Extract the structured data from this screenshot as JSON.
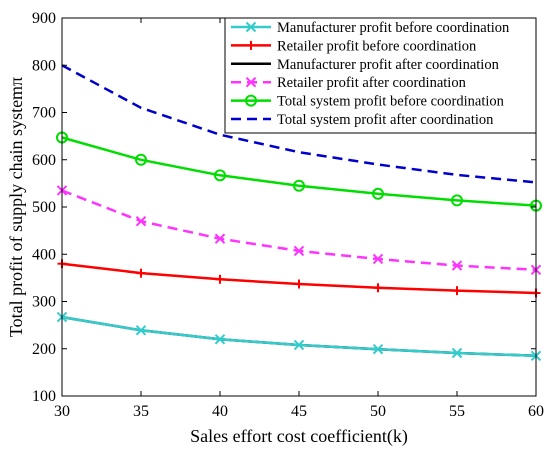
{
  "chart_data": {
    "type": "line",
    "title": "",
    "xlabel": "Sales effort cost coefficient(k)",
    "ylabel": "Total profit of supply chain systemπ",
    "xlim": [
      30,
      60
    ],
    "ylim": [
      100,
      900
    ],
    "xticks": [
      30,
      35,
      40,
      45,
      50,
      55,
      60
    ],
    "yticks": [
      100,
      200,
      300,
      400,
      500,
      600,
      700,
      800,
      900
    ],
    "grid": false,
    "legend_position": "top-right",
    "x": [
      30,
      35,
      40,
      45,
      50,
      55,
      60
    ],
    "series": [
      {
        "name": "Manufacturer profit before coordination",
        "values": [
          267,
          239,
          220,
          208,
          199,
          191,
          185
        ],
        "color": "#33cccc",
        "line_style": "solid",
        "marker": "x"
      },
      {
        "name": "Retailer profit before coordination",
        "values": [
          380,
          360,
          347,
          337,
          329,
          323,
          318
        ],
        "color": "#ff0000",
        "line_style": "solid",
        "marker": "plus"
      },
      {
        "name": "Manufacturer profit after coordination",
        "values": [
          267,
          239,
          220,
          208,
          199,
          191,
          185
        ],
        "color": "#000000",
        "line_style": "solid",
        "marker": "none"
      },
      {
        "name": "Retailer profit after coordination",
        "values": [
          535,
          470,
          433,
          407,
          390,
          376,
          367
        ],
        "color": "#ff33ff",
        "line_style": "dashed",
        "marker": "x"
      },
      {
        "name": "Total system profit before coordination",
        "values": [
          647,
          600,
          567,
          545,
          528,
          514,
          503
        ],
        "color": "#00dd00",
        "line_style": "solid",
        "marker": "circle"
      },
      {
        "name": "Total system profit after coordination",
        "values": [
          800,
          710,
          653,
          616,
          590,
          568,
          552
        ],
        "color": "#0000cc",
        "line_style": "dashed",
        "marker": "none"
      }
    ]
  }
}
